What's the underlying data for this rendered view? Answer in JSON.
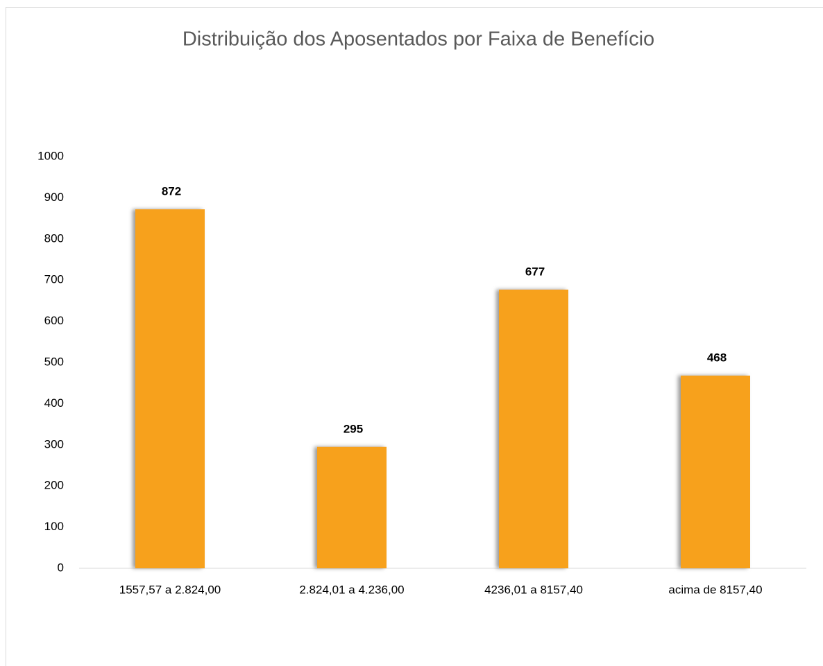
{
  "chart_data": {
    "type": "bar",
    "title": "Distribuição dos Aposentados por Faixa de Benefício",
    "categories": [
      "1557,57 a 2.824,00",
      "2.824,01 a 4.236,00",
      "4236,01 a 8157,40",
      "acima de 8157,40"
    ],
    "values": [
      872,
      295,
      677,
      468
    ],
    "color": "#f7a11a",
    "ylim": [
      0,
      1000
    ],
    "yticks": [
      0,
      100,
      200,
      300,
      400,
      500,
      600,
      700,
      800,
      900,
      1000
    ],
    "grid": false
  }
}
